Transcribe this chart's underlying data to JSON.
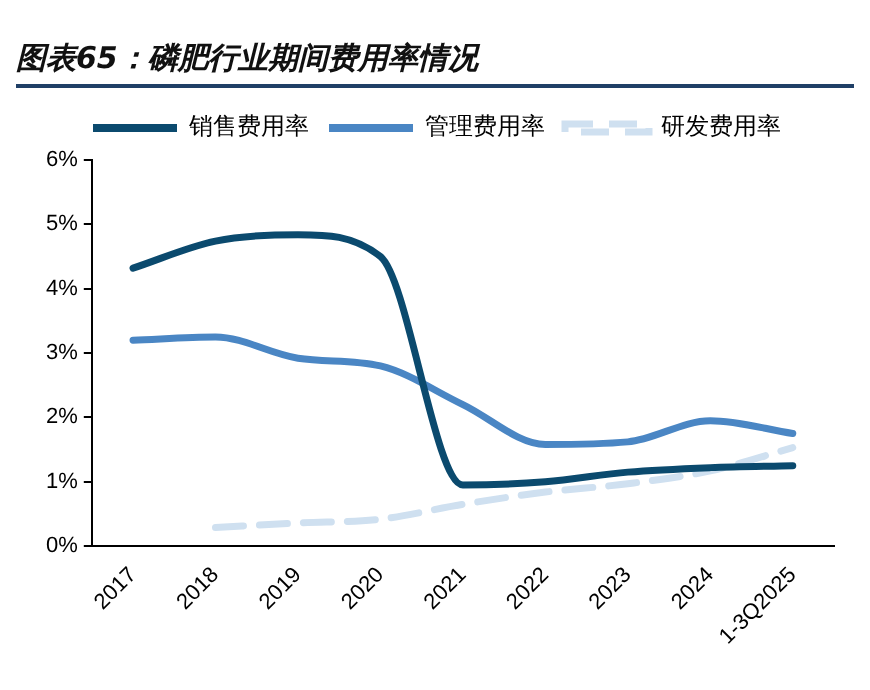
{
  "chart_data": {
    "type": "line",
    "title": "图表65：磷肥行业期间费用率情况",
    "categories": [
      "2017",
      "2018",
      "2019",
      "2020",
      "2021",
      "2022",
      "2023",
      "2024",
      "1-3Q2025"
    ],
    "series": [
      {
        "name": "销售费用率",
        "color": "#0b4a6e",
        "values": [
          4.32,
          4.74,
          4.84,
          4.5,
          0.95,
          1.0,
          1.15,
          1.22,
          1.25
        ]
      },
      {
        "name": "管理费用率",
        "color": "#4a86c4",
        "values": [
          3.2,
          3.25,
          2.92,
          2.8,
          2.2,
          1.58,
          1.62,
          1.95,
          1.75
        ]
      },
      {
        "name": "研发费用率",
        "color": "#cfe0f0",
        "line_style": "dashed",
        "values": [
          null,
          0.29,
          0.36,
          0.42,
          0.65,
          0.84,
          0.97,
          1.17,
          1.53
        ]
      }
    ],
    "ylim": [
      0,
      6
    ],
    "yticks": [
      {
        "value": 0,
        "label": "0%"
      },
      {
        "value": 1,
        "label": "1%"
      },
      {
        "value": 2,
        "label": "2%"
      },
      {
        "value": 3,
        "label": "3%"
      },
      {
        "value": 4,
        "label": "4%"
      },
      {
        "value": 5,
        "label": "5%"
      },
      {
        "value": 6,
        "label": "6%"
      }
    ],
    "grid": false,
    "legend": "top",
    "marker": "none"
  }
}
